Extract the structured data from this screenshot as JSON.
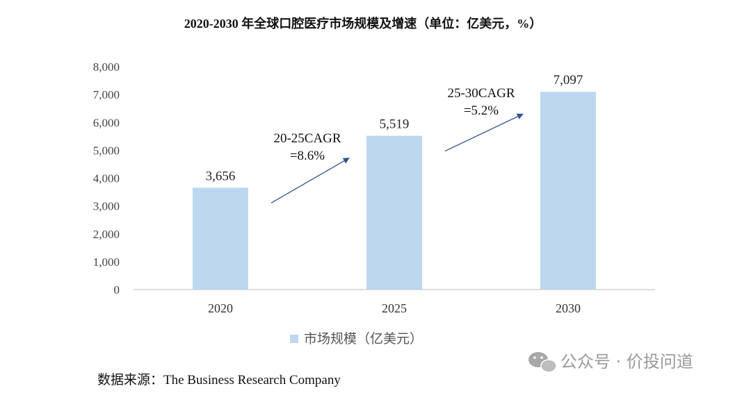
{
  "chart_data": {
    "type": "bar",
    "title": "2020-2030 年全球口腔医疗市场规模及增速（单位：亿美元，%）",
    "categories": [
      "2020",
      "2025",
      "2030"
    ],
    "series": [
      {
        "name": "市场规模（亿美元）",
        "values": [
          3656,
          5519,
          7097
        ],
        "labels": [
          "3,656",
          "5,519",
          "7,097"
        ]
      }
    ],
    "ylim": [
      0,
      8000
    ],
    "yticks": [
      0,
      1000,
      2000,
      3000,
      4000,
      5000,
      6000,
      7000,
      8000
    ],
    "ytick_labels": [
      "0",
      "1,000",
      "2,000",
      "3,000",
      "4,000",
      "5,000",
      "6,000",
      "7,000",
      "8,000"
    ],
    "grid": false,
    "legend_position": "bottom",
    "bar_color": "#bdd7ee",
    "arrow_color": "#2f5597",
    "annotations": [
      {
        "line1": "20-25CAGR",
        "line2": "=8.6%"
      },
      {
        "line1": "25-30CAGR",
        "line2": "=5.2%"
      }
    ]
  },
  "source": "数据来源：The Business Research Company",
  "watermark": {
    "text": "公众号 · 价投问道",
    "icon": "wechat-icon"
  }
}
